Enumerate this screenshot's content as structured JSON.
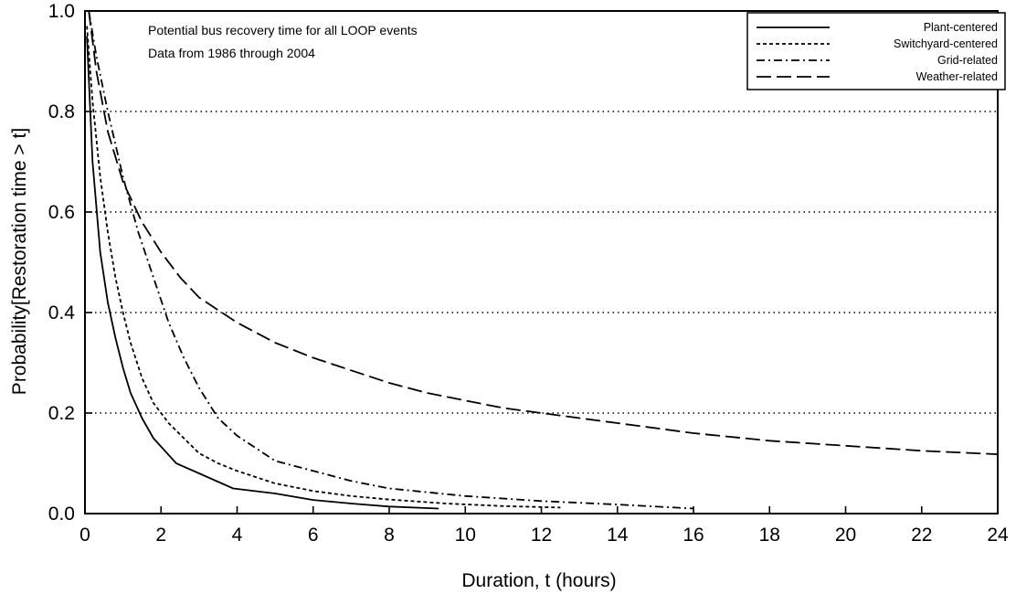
{
  "chart_data": {
    "type": "line",
    "title": "",
    "annotations": [
      "Potential bus recovery time for all LOOP events",
      "Data from 1986 through 2004"
    ],
    "xlabel": "Duration, t (hours)",
    "ylabel": "Probability[Restoration time > t]",
    "xlim": [
      0,
      24
    ],
    "ylim": [
      0,
      1.0
    ],
    "xticks": [
      0,
      2,
      4,
      6,
      8,
      10,
      12,
      14,
      16,
      18,
      20,
      22,
      24
    ],
    "yticks": [
      0.0,
      0.2,
      0.4,
      0.6,
      0.8,
      1.0
    ],
    "xtick_labels": [
      "0",
      "2",
      "4",
      "6",
      "8",
      "10",
      "12",
      "14",
      "16",
      "18",
      "20",
      "22",
      "24"
    ],
    "ytick_labels": [
      "0.0",
      "0.2",
      "0.4",
      "0.6",
      "0.8",
      "1.0"
    ],
    "grid": "horizontal dotted",
    "legend_position": "top-right",
    "series": [
      {
        "name": "Plant-centered",
        "style": "solid",
        "x": [
          0.05,
          0.2,
          0.4,
          0.6,
          0.8,
          1.0,
          1.2,
          1.5,
          1.8,
          2.4,
          3.0,
          3.9,
          5.0,
          6.0,
          7.0,
          8.0,
          9.3
        ],
        "y": [
          0.95,
          0.7,
          0.52,
          0.42,
          0.35,
          0.29,
          0.24,
          0.19,
          0.15,
          0.1,
          0.08,
          0.05,
          0.04,
          0.027,
          0.02,
          0.014,
          0.01
        ]
      },
      {
        "name": "Switchyard-centered",
        "style": "short-dash",
        "x": [
          0.05,
          0.2,
          0.4,
          0.6,
          0.8,
          1.0,
          1.2,
          1.5,
          1.8,
          2.2,
          2.6,
          3.0,
          3.5,
          4.0,
          5.0,
          6.0,
          7.0,
          8.0,
          9.5,
          11.0,
          12.5
        ],
        "y": [
          0.97,
          0.82,
          0.67,
          0.56,
          0.47,
          0.4,
          0.34,
          0.27,
          0.22,
          0.18,
          0.15,
          0.12,
          0.1,
          0.085,
          0.06,
          0.045,
          0.035,
          0.028,
          0.02,
          0.015,
          0.012
        ]
      },
      {
        "name": "Grid-related",
        "style": "dash-dot",
        "x": [
          0.1,
          0.3,
          0.6,
          1.0,
          1.4,
          1.8,
          2.2,
          2.6,
          3.0,
          3.5,
          4.0,
          5.0,
          6.0,
          7.0,
          8.0,
          10.0,
          12.0,
          14.0,
          16.0
        ],
        "y": [
          1.0,
          0.91,
          0.8,
          0.67,
          0.56,
          0.47,
          0.38,
          0.31,
          0.25,
          0.19,
          0.155,
          0.105,
          0.085,
          0.065,
          0.05,
          0.035,
          0.025,
          0.018,
          0.01
        ]
      },
      {
        "name": "Weather-related",
        "style": "long-dash",
        "x": [
          0.1,
          0.3,
          0.6,
          1.0,
          1.5,
          2.0,
          2.5,
          3.0,
          4.0,
          5.0,
          6.0,
          7.0,
          8.0,
          9.0,
          10.0,
          11.0,
          12.0,
          14.0,
          16.0,
          18.0,
          20.0,
          22.0,
          24.0
        ],
        "y": [
          1.0,
          0.88,
          0.76,
          0.66,
          0.58,
          0.52,
          0.47,
          0.43,
          0.38,
          0.34,
          0.31,
          0.285,
          0.26,
          0.24,
          0.225,
          0.21,
          0.2,
          0.18,
          0.16,
          0.145,
          0.135,
          0.125,
          0.118
        ]
      }
    ]
  }
}
